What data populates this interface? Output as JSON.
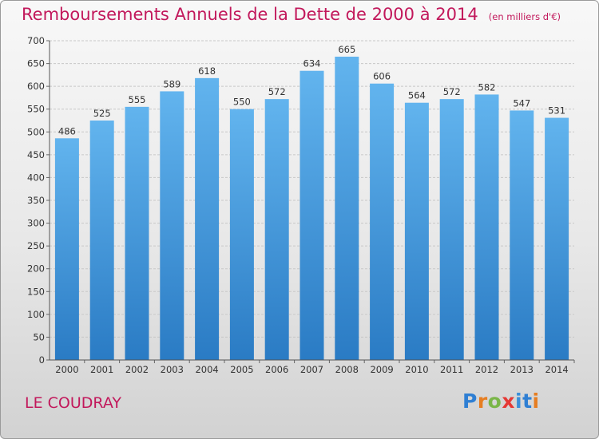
{
  "header": {
    "title": "Remboursements Annuels de la Dette de 2000 à 2014",
    "subtitle": "(en milliers d'€)"
  },
  "footer": {
    "place_name": "LE COUDRAY",
    "logo_text": "Proxiti",
    "logo_colors": [
      "#2f7fd3",
      "#e67e22",
      "#7ab648",
      "#e53935",
      "#3a8fd9"
    ]
  },
  "colors": {
    "title": "#c2185b",
    "bar_top": "#62b4ee",
    "bar_bottom": "#2a7bc4",
    "axis_text": "#333333",
    "grid": "#c8c8c8"
  },
  "chart_data": {
    "type": "bar",
    "title": "Remboursements Annuels de la Dette de 2000 à 2014",
    "subtitle": "(en milliers d'€)",
    "xlabel": "",
    "ylabel": "",
    "categories": [
      "2000",
      "2001",
      "2002",
      "2003",
      "2004",
      "2005",
      "2006",
      "2007",
      "2008",
      "2009",
      "2010",
      "2011",
      "2012",
      "2013",
      "2014"
    ],
    "values": [
      486,
      525,
      555,
      589,
      618,
      550,
      572,
      634,
      665,
      606,
      564,
      572,
      582,
      547,
      531
    ],
    "ylim": [
      0,
      700
    ],
    "yticks": [
      0,
      50,
      100,
      150,
      200,
      250,
      300,
      350,
      400,
      450,
      500,
      550,
      600,
      650,
      700
    ],
    "grid": true,
    "data_labels": true
  }
}
